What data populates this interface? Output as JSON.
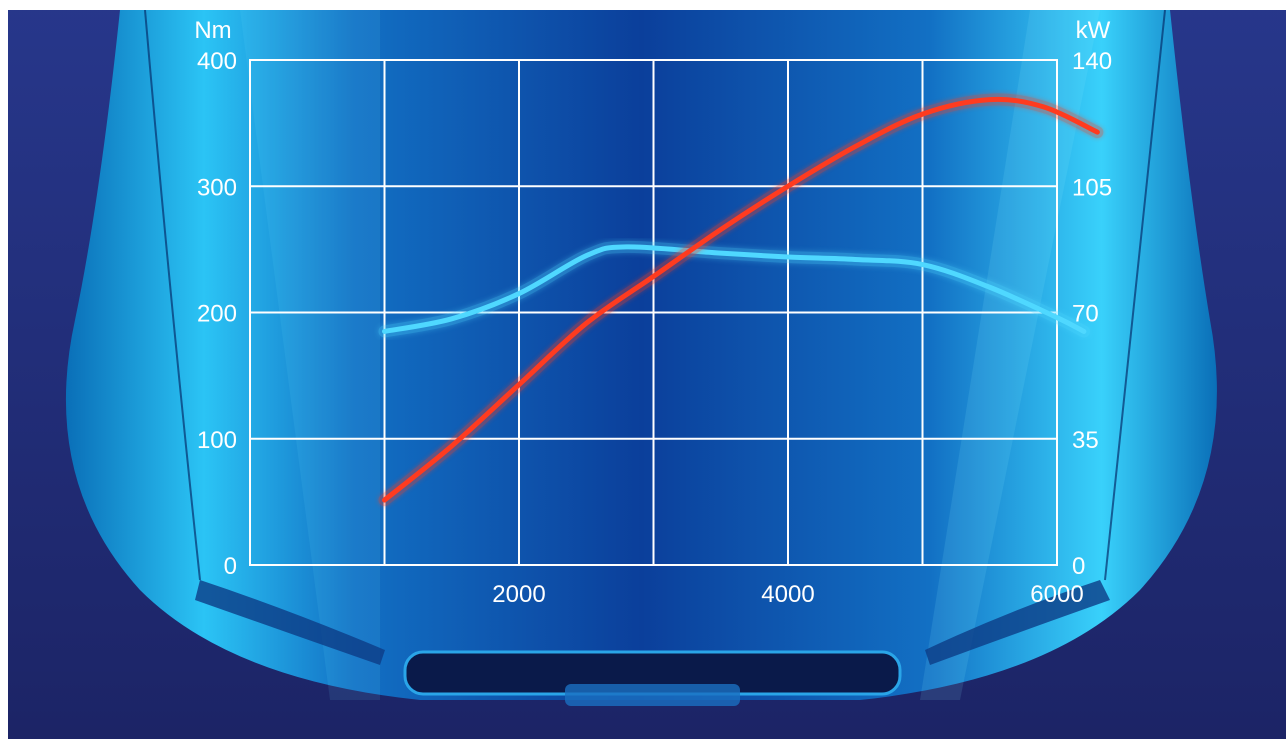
{
  "chart_data": {
    "type": "line",
    "x_ticks": [
      2000,
      4000,
      6000
    ],
    "xlim": [
      0,
      6000
    ],
    "left_axis": {
      "unit_label": "Nm",
      "ticks": [
        "0",
        "100",
        "200",
        "300",
        "400"
      ],
      "ylim": [
        0,
        400
      ]
    },
    "right_axis": {
      "unit_label": "kW",
      "ticks": [
        "0",
        "35",
        "70",
        "105",
        "140"
      ],
      "ylim": [
        0,
        140
      ]
    },
    "grid": true,
    "series": [
      {
        "axis": "left",
        "color": "#4fd8ff",
        "x": [
          1000,
          1500,
          2000,
          2500,
          2800,
          3500,
          4000,
          4500,
          5000,
          5500,
          6000,
          6200
        ],
        "y": [
          185,
          195,
          215,
          245,
          252,
          247,
          244,
          242,
          238,
          220,
          196,
          185
        ]
      },
      {
        "axis": "right",
        "color": "#ff3b1f",
        "x": [
          1000,
          1500,
          2000,
          2500,
          3000,
          3500,
          4000,
          4500,
          5000,
          5500,
          5900,
          6300
        ],
        "y": [
          18,
          33,
          50,
          67,
          80,
          93,
          105,
          116,
          125,
          129,
          127,
          120
        ]
      }
    ]
  },
  "colors": {
    "background": "#2a3a8a",
    "car_body": "#1aa8e6",
    "grid": "#ffffff",
    "text": "#ffffff"
  }
}
